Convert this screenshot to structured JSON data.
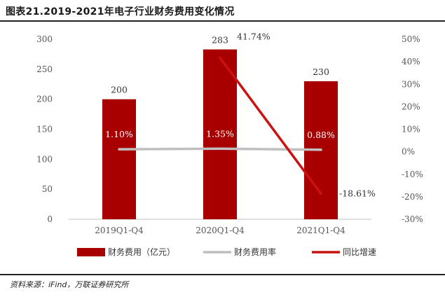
{
  "title": "图表21.2019-2021年电子行业财务费用变化情况",
  "source": "资料来源：iFind，万联证券研究所",
  "chart_data": {
    "type": "bar",
    "categories": [
      "2019Q1-Q4",
      "2020Q1-Q4",
      "2021Q1-Q4"
    ],
    "series": [
      {
        "name": "财务费用（亿元）",
        "type": "bar",
        "axis": "left",
        "values": [
          200,
          283,
          230
        ],
        "labels": [
          "200",
          "283",
          "230"
        ],
        "color": "#a80000"
      },
      {
        "name": "财务费用率",
        "type": "line",
        "axis": "right",
        "values": [
          1.1,
          1.35,
          0.88
        ],
        "labels": [
          "1.10%",
          "1.35%",
          "0.88%"
        ],
        "color": "#bfbfbf"
      },
      {
        "name": "同比增速",
        "type": "line",
        "axis": "right",
        "values": [
          null,
          41.74,
          -18.61
        ],
        "labels": [
          "",
          "41.74%",
          "-18.61%"
        ],
        "color": "#cc1111"
      }
    ],
    "y_left": {
      "min": 0,
      "max": 300,
      "ticks": [
        "0",
        "50",
        "100",
        "150",
        "200",
        "250",
        "300"
      ]
    },
    "y_right": {
      "min": -30,
      "max": 50,
      "ticks": [
        "-30%",
        "-20%",
        "-10%",
        "0%",
        "10%",
        "20%",
        "30%",
        "40%",
        "50%"
      ]
    },
    "legend_position": "bottom",
    "grid": false
  }
}
